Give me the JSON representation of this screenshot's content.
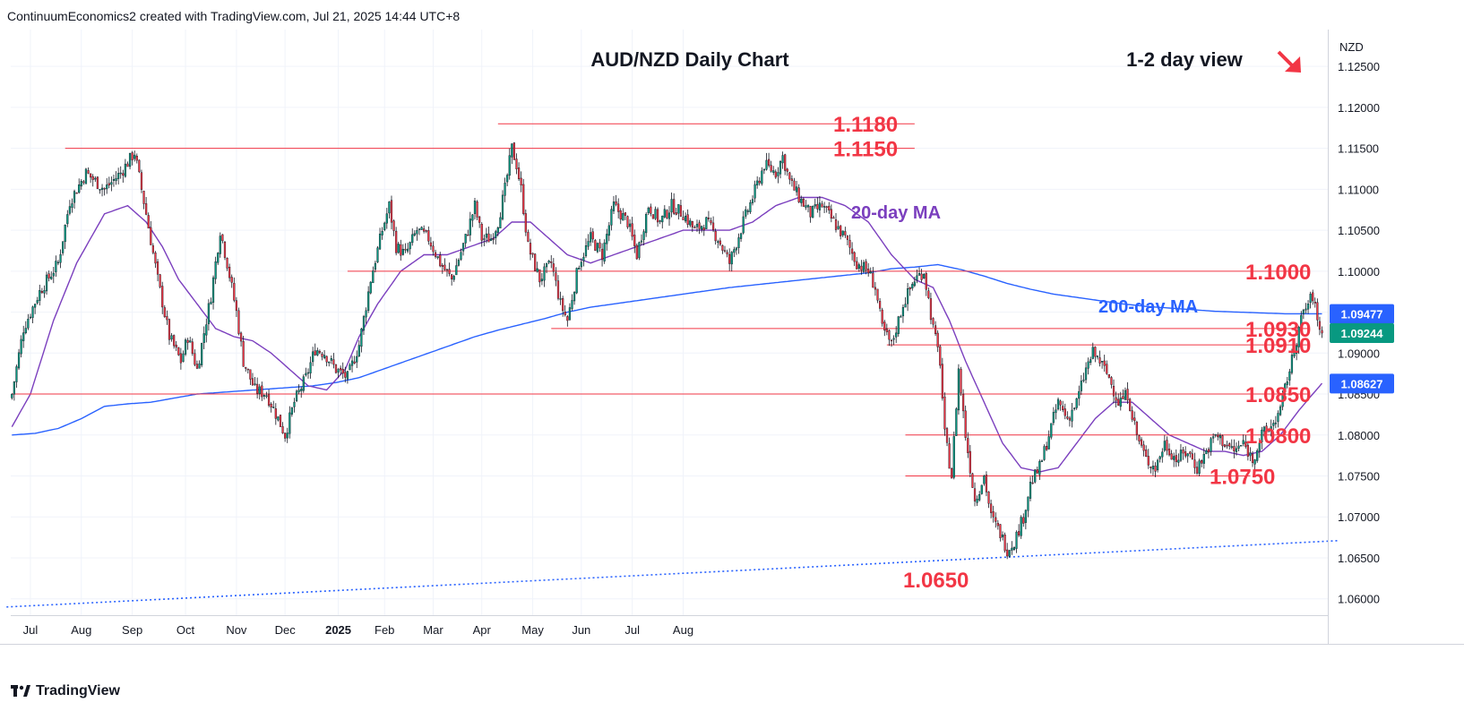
{
  "header": {
    "attribution": "ContinuumEconomics2 created with TradingView.com, Jul 21, 2025 14:44 UTC+8"
  },
  "footer": {
    "logo_text": "TradingView"
  },
  "colors": {
    "up": "#089981",
    "down": "#f23645",
    "level_line": "#f23645",
    "level_label": "#f23645",
    "ma20": "#7b3fbe",
    "ma200": "#2962ff",
    "trendline": "#2962ff",
    "view_arrow": "#f23645"
  },
  "chart_data": {
    "type": "candlestick",
    "title": "AUD/NZD Daily Chart",
    "subtitle": "1-2 day view",
    "view_direction": "down",
    "y_axis_label": "NZD",
    "ylim": [
      1.058,
      1.1295
    ],
    "y_ticks": [
      "1.12500",
      "1.12000",
      "1.11500",
      "1.11000",
      "1.10500",
      "1.10000",
      "1.09500",
      "1.09000",
      "1.08500",
      "1.08000",
      "1.07500",
      "1.07000",
      "1.06500",
      "1.06000"
    ],
    "x_ticks": [
      "Jul",
      "Aug",
      "Sep",
      "Oct",
      "Nov",
      "Dec",
      "2025",
      "Feb",
      "Mar",
      "Apr",
      "May",
      "Jun",
      "Jul",
      "Aug"
    ],
    "price_tags": [
      {
        "value": "1.09477",
        "color": "#2962ff"
      },
      {
        "value": "1.09244",
        "color": "#089981"
      },
      {
        "value": "1.08627",
        "color": "#2962ff"
      }
    ],
    "levels": [
      {
        "value": 1.118,
        "label": "1.1180"
      },
      {
        "value": 1.115,
        "label": "1.1150"
      },
      {
        "value": 1.1,
        "label": "1.1000"
      },
      {
        "value": 1.093,
        "label": "1.0930"
      },
      {
        "value": 1.091,
        "label": "1.0910"
      },
      {
        "value": 1.085,
        "label": "1.0850"
      },
      {
        "value": 1.08,
        "label": "1.0800"
      },
      {
        "value": 1.075,
        "label": "1.0750"
      },
      {
        "value": 1.065,
        "label": "1.0650"
      }
    ],
    "annotations": [
      {
        "text": "20-day MA",
        "color": "#7b3fbe"
      },
      {
        "text": "200-day MA",
        "color": "#2962ff"
      }
    ],
    "close_path": [
      [
        0,
        1.085
      ],
      [
        5,
        1.093
      ],
      [
        12,
        1.0975
      ],
      [
        20,
        1.101
      ],
      [
        25,
        1.1085
      ],
      [
        32,
        1.112
      ],
      [
        40,
        1.11
      ],
      [
        47,
        1.112
      ],
      [
        53,
        1.1145
      ],
      [
        58,
        1.107
      ],
      [
        63,
        1.099
      ],
      [
        68,
        1.092
      ],
      [
        73,
        1.089
      ],
      [
        76,
        1.092
      ],
      [
        80,
        1.088
      ],
      [
        86,
        1.097
      ],
      [
        90,
        1.105
      ],
      [
        93,
        1.101
      ],
      [
        97,
        1.095
      ],
      [
        100,
        1.089
      ],
      [
        105,
        1.0855
      ],
      [
        110,
        1.085
      ],
      [
        115,
        1.082
      ],
      [
        118,
        1.08
      ],
      [
        122,
        1.084
      ],
      [
        127,
        1.087
      ],
      [
        131,
        1.0905
      ],
      [
        135,
        1.09
      ],
      [
        140,
        1.088
      ],
      [
        145,
        1.087
      ],
      [
        150,
        1.091
      ],
      [
        155,
        1.099
      ],
      [
        160,
        1.105
      ],
      [
        163,
        1.108
      ],
      [
        166,
        1.103
      ],
      [
        170,
        1.102
      ],
      [
        175,
        1.105
      ],
      [
        180,
        1.104
      ],
      [
        185,
        1.101
      ],
      [
        190,
        1.099
      ],
      [
        196,
        1.104
      ],
      [
        200,
        1.108
      ],
      [
        203,
        1.104
      ],
      [
        207,
        1.104
      ],
      [
        210,
        1.106
      ],
      [
        213,
        1.11
      ],
      [
        216,
        1.115
      ],
      [
        218,
        1.113
      ],
      [
        220,
        1.11
      ],
      [
        223,
        1.103
      ],
      [
        228,
        1.099
      ],
      [
        233,
        1.101
      ],
      [
        237,
        1.096
      ],
      [
        240,
        1.094
      ],
      [
        245,
        1.101
      ],
      [
        250,
        1.104
      ],
      [
        255,
        1.102
      ],
      [
        260,
        1.108
      ],
      [
        266,
        1.106
      ],
      [
        270,
        1.102
      ],
      [
        275,
        1.108
      ],
      [
        280,
        1.106
      ],
      [
        285,
        1.108
      ],
      [
        290,
        1.107
      ],
      [
        295,
        1.105
      ],
      [
        300,
        1.106
      ],
      [
        305,
        1.104
      ],
      [
        310,
        1.101
      ],
      [
        316,
        1.106
      ],
      [
        320,
        1.109
      ],
      [
        325,
        1.113
      ],
      [
        330,
        1.112
      ],
      [
        333,
        1.114
      ],
      [
        336,
        1.111
      ],
      [
        340,
        1.109
      ],
      [
        345,
        1.107
      ],
      [
        350,
        1.108
      ],
      [
        355,
        1.106
      ],
      [
        360,
        1.104
      ],
      [
        365,
        1.101
      ],
      [
        370,
        1.1
      ],
      [
        373,
        1.098
      ],
      [
        376,
        1.093
      ],
      [
        380,
        1.091
      ],
      [
        385,
        1.096
      ],
      [
        390,
        1.099
      ],
      [
        394,
        1.1
      ],
      [
        398,
        1.093
      ],
      [
        401,
        1.089
      ],
      [
        403,
        1.08
      ],
      [
        406,
        1.075
      ],
      [
        409,
        1.088
      ],
      [
        412,
        1.08
      ],
      [
        416,
        1.072
      ],
      [
        420,
        1.075
      ],
      [
        423,
        1.07
      ],
      [
        427,
        1.068
      ],
      [
        430,
        1.066
      ],
      [
        433,
        1.067
      ],
      [
        437,
        1.07
      ],
      [
        440,
        1.074
      ],
      [
        444,
        1.076
      ],
      [
        448,
        1.08
      ],
      [
        452,
        1.084
      ],
      [
        456,
        1.082
      ],
      [
        460,
        1.084
      ],
      [
        464,
        1.088
      ],
      [
        467,
        1.09
      ],
      [
        470,
        1.089
      ],
      [
        474,
        1.087
      ],
      [
        478,
        1.084
      ],
      [
        482,
        1.085
      ],
      [
        486,
        1.08
      ],
      [
        490,
        1.077
      ],
      [
        494,
        1.076
      ],
      [
        498,
        1.079
      ],
      [
        503,
        1.077
      ],
      [
        508,
        1.078
      ],
      [
        512,
        1.076
      ],
      [
        516,
        1.078
      ],
      [
        520,
        1.08
      ],
      [
        524,
        1.079
      ],
      [
        528,
        1.078
      ],
      [
        532,
        1.079
      ],
      [
        536,
        1.077
      ],
      [
        540,
        1.08
      ],
      [
        544,
        1.081
      ],
      [
        548,
        1.083
      ],
      [
        551,
        1.087
      ],
      [
        553,
        1.089
      ],
      [
        556,
        1.093
      ],
      [
        558,
        1.095
      ],
      [
        560,
        1.096
      ],
      [
        562,
        1.097
      ],
      [
        564,
        1.094
      ],
      [
        566,
        1.0924
      ]
    ],
    "ma20_path": [
      [
        0,
        1.081
      ],
      [
        8,
        1.085
      ],
      [
        18,
        1.094
      ],
      [
        28,
        1.101
      ],
      [
        40,
        1.107
      ],
      [
        50,
        1.108
      ],
      [
        58,
        1.106
      ],
      [
        65,
        1.103
      ],
      [
        72,
        1.099
      ],
      [
        80,
        1.096
      ],
      [
        88,
        1.093
      ],
      [
        96,
        1.092
      ],
      [
        104,
        1.0915
      ],
      [
        112,
        1.09
      ],
      [
        120,
        1.088
      ],
      [
        128,
        1.086
      ],
      [
        136,
        1.0855
      ],
      [
        144,
        1.088
      ],
      [
        150,
        1.092
      ],
      [
        158,
        1.096
      ],
      [
        168,
        1.1
      ],
      [
        178,
        1.102
      ],
      [
        188,
        1.102
      ],
      [
        198,
        1.103
      ],
      [
        208,
        1.104
      ],
      [
        216,
        1.106
      ],
      [
        224,
        1.106
      ],
      [
        232,
        1.104
      ],
      [
        240,
        1.102
      ],
      [
        250,
        1.101
      ],
      [
        260,
        1.102
      ],
      [
        270,
        1.103
      ],
      [
        280,
        1.104
      ],
      [
        290,
        1.105
      ],
      [
        300,
        1.105
      ],
      [
        310,
        1.105
      ],
      [
        320,
        1.106
      ],
      [
        330,
        1.108
      ],
      [
        340,
        1.109
      ],
      [
        350,
        1.109
      ],
      [
        360,
        1.108
      ],
      [
        370,
        1.106
      ],
      [
        380,
        1.102
      ],
      [
        390,
        1.099
      ],
      [
        398,
        1.098
      ],
      [
        405,
        1.094
      ],
      [
        412,
        1.089
      ],
      [
        420,
        1.084
      ],
      [
        428,
        1.079
      ],
      [
        436,
        1.076
      ],
      [
        444,
        1.0755
      ],
      [
        452,
        1.076
      ],
      [
        460,
        1.079
      ],
      [
        468,
        1.082
      ],
      [
        476,
        1.084
      ],
      [
        484,
        1.084
      ],
      [
        492,
        1.082
      ],
      [
        500,
        1.08
      ],
      [
        508,
        1.079
      ],
      [
        516,
        1.078
      ],
      [
        524,
        1.078
      ],
      [
        532,
        1.0775
      ],
      [
        540,
        1.078
      ],
      [
        548,
        1.08
      ],
      [
        556,
        1.083
      ],
      [
        562,
        1.085
      ],
      [
        566,
        1.0863
      ]
    ],
    "ma200_path": [
      [
        0,
        1.08
      ],
      [
        10,
        1.0802
      ],
      [
        20,
        1.0808
      ],
      [
        30,
        1.082
      ],
      [
        40,
        1.0835
      ],
      [
        50,
        1.0838
      ],
      [
        60,
        1.084
      ],
      [
        70,
        1.0845
      ],
      [
        80,
        1.085
      ],
      [
        90,
        1.0852
      ],
      [
        100,
        1.0854
      ],
      [
        110,
        1.0856
      ],
      [
        120,
        1.0858
      ],
      [
        130,
        1.086
      ],
      [
        140,
        1.0864
      ],
      [
        150,
        1.087
      ],
      [
        160,
        1.088
      ],
      [
        170,
        1.089
      ],
      [
        180,
        1.09
      ],
      [
        190,
        1.091
      ],
      [
        200,
        1.092
      ],
      [
        210,
        1.0928
      ],
      [
        220,
        1.0935
      ],
      [
        230,
        1.0942
      ],
      [
        240,
        1.095
      ],
      [
        250,
        1.0956
      ],
      [
        260,
        1.096
      ],
      [
        270,
        1.0964
      ],
      [
        280,
        1.0968
      ],
      [
        290,
        1.0972
      ],
      [
        300,
        1.0976
      ],
      [
        310,
        1.098
      ],
      [
        320,
        1.0983
      ],
      [
        330,
        1.0986
      ],
      [
        340,
        1.0989
      ],
      [
        350,
        1.0992
      ],
      [
        360,
        1.0995
      ],
      [
        370,
        1.0998
      ],
      [
        380,
        1.1003
      ],
      [
        390,
        1.1005
      ],
      [
        400,
        1.1008
      ],
      [
        410,
        1.1002
      ],
      [
        420,
        1.0994
      ],
      [
        430,
        1.0985
      ],
      [
        440,
        1.0978
      ],
      [
        450,
        1.0972
      ],
      [
        460,
        1.0968
      ],
      [
        470,
        1.0964
      ],
      [
        480,
        1.096
      ],
      [
        490,
        1.0957
      ],
      [
        500,
        1.0955
      ],
      [
        510,
        1.0953
      ],
      [
        520,
        1.0951
      ],
      [
        530,
        1.095
      ],
      [
        540,
        1.0949
      ],
      [
        550,
        1.0948
      ],
      [
        566,
        1.0948
      ]
    ],
    "trendline": [
      [
        0,
        1.059
      ],
      [
        566,
        1.067
      ]
    ]
  }
}
